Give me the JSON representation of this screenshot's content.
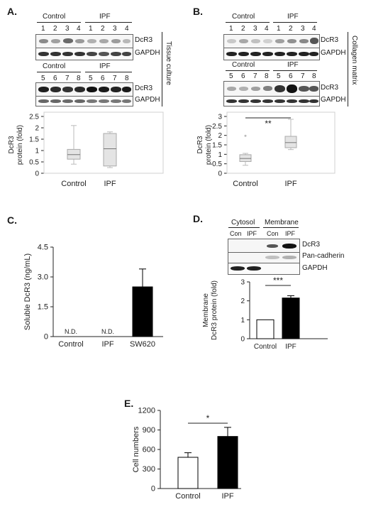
{
  "panels": {
    "A": {
      "letter": "A.",
      "group_labels": [
        "Control",
        "IPF"
      ],
      "lanes_top": [
        "1",
        "2",
        "3",
        "4",
        "1",
        "2",
        "3",
        "4"
      ],
      "lanes_bottom": [
        "5",
        "6",
        "7",
        "8",
        "5",
        "6",
        "7",
        "8"
      ],
      "proteins": [
        "DcR3",
        "GAPDH"
      ],
      "side_label": "Tissue culture"
    },
    "B": {
      "letter": "B.",
      "group_labels": [
        "Control",
        "IPF"
      ],
      "lanes_top": [
        "1",
        "2",
        "3",
        "4",
        "1",
        "2",
        "3",
        "4"
      ],
      "lanes_bottom": [
        "5",
        "6",
        "7",
        "8",
        "5",
        "6",
        "7",
        "8"
      ],
      "proteins": [
        "DcR3",
        "GAPDH"
      ],
      "side_label": "Collagen matrix"
    },
    "C": {
      "letter": "C."
    },
    "D": {
      "letter": "D.",
      "fraction_labels": [
        "Cytosol",
        "Membrane"
      ],
      "lanes": [
        "Con",
        "IPF",
        "Con",
        "IPF"
      ],
      "proteins": [
        "DcR3",
        "Pan-cadherin",
        "GAPDH"
      ]
    },
    "E": {
      "letter": "E."
    }
  },
  "chart_data": [
    {
      "panel": "A",
      "type": "box",
      "ylabel": "DcR3 protein (fold)",
      "categories": [
        "Control",
        "IPF"
      ],
      "yticks": [
        "0",
        "0.5",
        "1",
        "1.5",
        "2",
        "2.5"
      ],
      "ylim": [
        0,
        2.5
      ],
      "boxes": [
        {
          "min": 0.4,
          "q1": 0.62,
          "median": 0.82,
          "q3": 1.05,
          "max": 2.1
        },
        {
          "min": 0.25,
          "q1": 0.32,
          "median": 1.08,
          "q3": 1.75,
          "max": 1.82
        }
      ],
      "grid": false
    },
    {
      "panel": "B",
      "type": "box",
      "ylabel": "DcR3 protein (fold)",
      "categories": [
        "Control",
        "IPF"
      ],
      "yticks": [
        "0",
        "0.5",
        "1",
        "1.5",
        "2",
        "2.5",
        "3"
      ],
      "ylim": [
        0,
        3
      ],
      "boxes": [
        {
          "min": 0.42,
          "q1": 0.62,
          "median": 0.78,
          "q3": 0.98,
          "max": 1.05,
          "outliers": [
            1.98
          ]
        },
        {
          "min": 1.25,
          "q1": 1.35,
          "median": 1.62,
          "q3": 1.95,
          "max": 2.85
        }
      ],
      "significance": "**",
      "grid": false
    },
    {
      "panel": "C",
      "type": "bar",
      "ylabel": "Soluble DcR3 (ng/mL)",
      "categories": [
        "Control",
        "IPF",
        "SW620"
      ],
      "values": [
        null,
        null,
        2.5
      ],
      "errors": [
        null,
        null,
        0.9
      ],
      "bar_labels": [
        "N.D.",
        "N.D.",
        ""
      ],
      "bar_colors": [
        "#ffffff",
        "#ffffff",
        "#000000"
      ],
      "yticks": [
        "0",
        "1.5",
        "3.0",
        "4.5"
      ],
      "ylim": [
        0,
        4.5
      ],
      "grid": false
    },
    {
      "panel": "D",
      "type": "bar",
      "ylabel": "Membrane DcR3 protein (fold)",
      "categories": [
        "Control",
        "IPF"
      ],
      "values": [
        1.0,
        2.15
      ],
      "errors": [
        0,
        0.12
      ],
      "bar_colors": [
        "#ffffff",
        "#000000"
      ],
      "yticks": [
        "0",
        "1",
        "2",
        "3"
      ],
      "ylim": [
        0,
        3
      ],
      "significance": "***",
      "grid": false
    },
    {
      "panel": "E",
      "type": "bar",
      "ylabel": "Cell numbers",
      "categories": [
        "Control",
        "IPF"
      ],
      "values": [
        480,
        800
      ],
      "errors": [
        70,
        140
      ],
      "bar_colors": [
        "#ffffff",
        "#000000"
      ],
      "yticks": [
        "0",
        "300",
        "600",
        "900",
        "1200"
      ],
      "ylim": [
        0,
        1200
      ],
      "significance": "*",
      "grid": false
    }
  ]
}
